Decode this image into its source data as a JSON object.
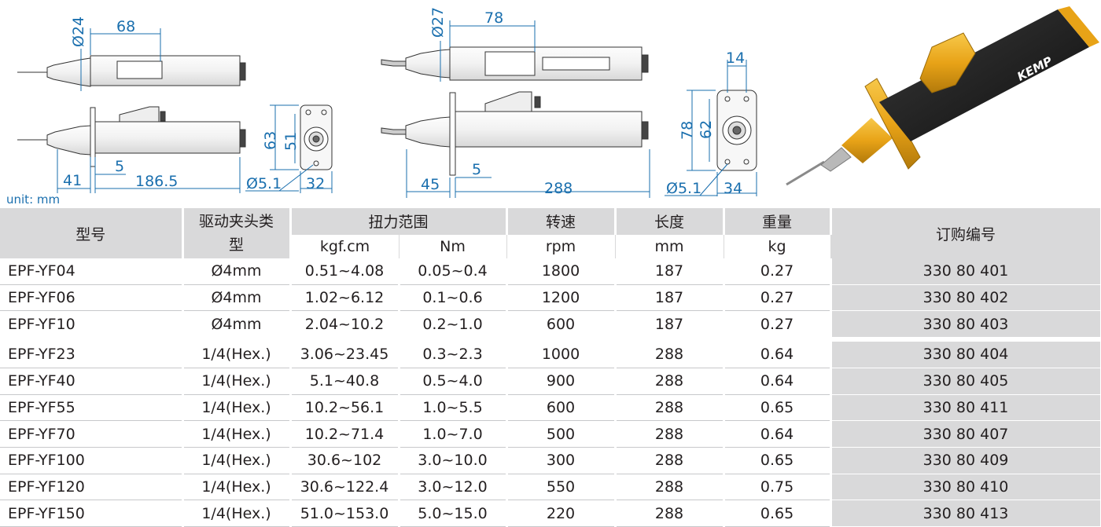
{
  "drawing_labels": {
    "small_diameter": "Ø24",
    "small_front_len": "68",
    "small_height": "63",
    "small_inner": "51",
    "small_hole": "Ø5.1",
    "small_width": "32",
    "small_left": "41",
    "small_flange": "5",
    "small_total": "186.5",
    "large_diameter": "Ø27",
    "large_front_len": "78",
    "large_left": "45",
    "large_flange": "5",
    "large_total": "288",
    "large_top": "14",
    "large_height": "78",
    "large_inner": "62",
    "large_hole": "Ø5.1",
    "large_width": "34",
    "brand": "KEMP",
    "unit": "unit: mm"
  },
  "table": {
    "headers": {
      "model": "型号",
      "drive": "驱动夹头类型",
      "torque": "扭力范围",
      "torque_kgf": "kgf.cm",
      "torque_nm": "Nm",
      "speed": "转速",
      "speed_unit": "rpm",
      "length": "长度",
      "length_unit": "mm",
      "weight": "重量",
      "weight_unit": "kg",
      "order": "订购编号"
    },
    "rows": [
      {
        "model": "EPF-YF04",
        "drive": "Ø4mm",
        "kgf": "0.51~4.08",
        "nm": "0.05~0.4",
        "rpm": "1800",
        "length": "187",
        "weight": "0.27",
        "order": "330 80 401"
      },
      {
        "model": "EPF-YF06",
        "drive": "Ø4mm",
        "kgf": "1.02~6.12",
        "nm": "0.1~0.6",
        "rpm": "1200",
        "length": "187",
        "weight": "0.27",
        "order": "330 80 402"
      },
      {
        "model": "EPF-YF10",
        "drive": "Ø4mm",
        "kgf": "2.04~10.2",
        "nm": "0.2~1.0",
        "rpm": "600",
        "length": "187",
        "weight": "0.27",
        "order": "330 80 403"
      },
      {
        "model": "EPF-YF23",
        "drive": "1/4(Hex.)",
        "kgf": "3.06~23.45",
        "nm": "0.3~2.3",
        "rpm": "1000",
        "length": "288",
        "weight": "0.64",
        "order": "330 80 404"
      },
      {
        "model": "EPF-YF40",
        "drive": "1/4(Hex.)",
        "kgf": "5.1~40.8",
        "nm": "0.5~4.0",
        "rpm": "900",
        "length": "288",
        "weight": "0.64",
        "order": "330 80 405"
      },
      {
        "model": "EPF-YF55",
        "drive": "1/4(Hex.)",
        "kgf": "10.2~56.1",
        "nm": "1.0~5.5",
        "rpm": "600",
        "length": "288",
        "weight": "0.65",
        "order": "330 80 411"
      },
      {
        "model": "EPF-YF70",
        "drive": "1/4(Hex.)",
        "kgf": "10.2~71.4",
        "nm": "1.0~7.0",
        "rpm": "500",
        "length": "288",
        "weight": "0.64",
        "order": "330 80 407"
      },
      {
        "model": "EPF-YF100",
        "drive": "1/4(Hex.)",
        "kgf": "30.6~102",
        "nm": "3.0~10.0",
        "rpm": "300",
        "length": "288",
        "weight": "0.65",
        "order": "330 80 409"
      },
      {
        "model": "EPF-YF120",
        "drive": "1/4(Hex.)",
        "kgf": "30.6~122.4",
        "nm": "3.0~12.0",
        "rpm": "550",
        "length": "288",
        "weight": "0.75",
        "order": "330 80 410"
      },
      {
        "model": "EPF-YF150",
        "drive": "1/4(Hex.)",
        "kgf": "51.0~153.0",
        "nm": "5.0~15.0",
        "rpm": "220",
        "length": "288",
        "weight": "0.65",
        "order": "330 80 413"
      }
    ]
  },
  "colors": {
    "dimension": "#1a6fae",
    "header_bg": "#d9d9da",
    "gold": "#e8a317",
    "body_black": "#1a1a1a"
  }
}
